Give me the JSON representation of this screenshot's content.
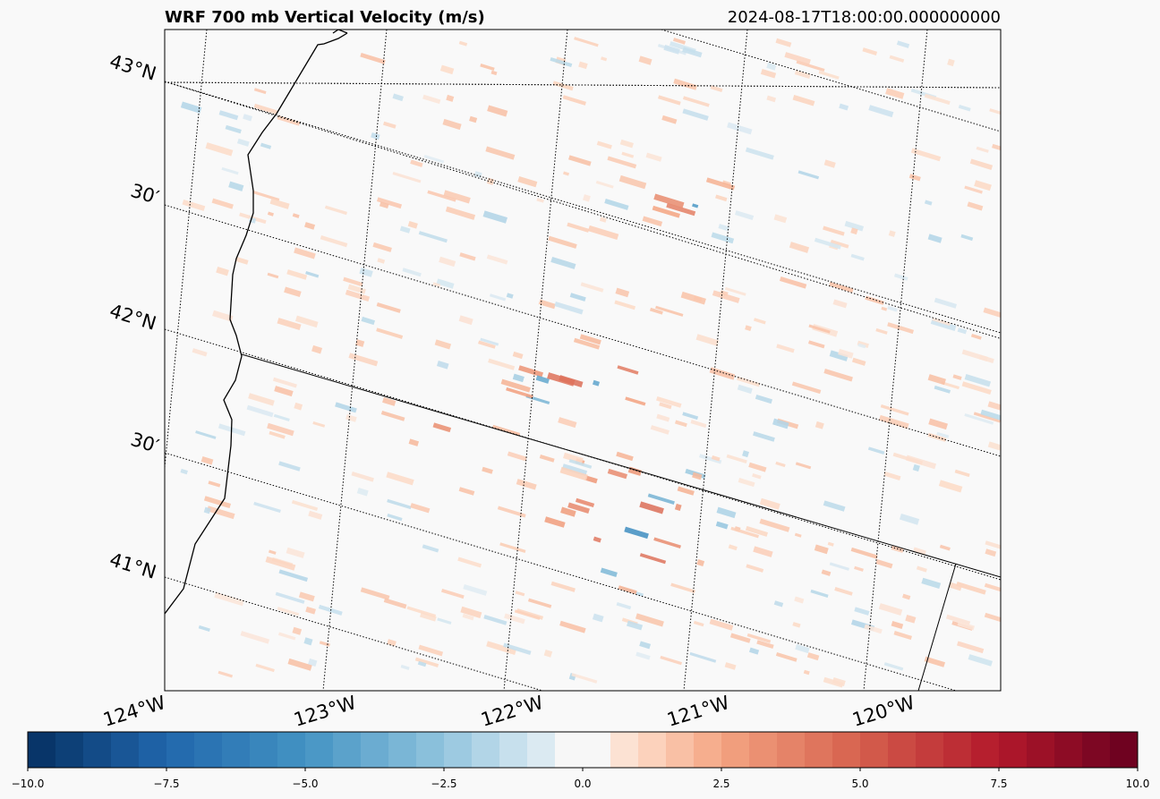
{
  "chart_data": {
    "type": "heatmap",
    "title": "WRF 700 mb Vertical Velocity (m/s)",
    "timestamp": "2024-08-17T18:00:00.000000000",
    "map": {
      "projection": "rotated Lambert-style map, north-west US (southern Oregon / northern California)",
      "lat_labels": [
        "43°N",
        "30′",
        "42°N",
        "30′",
        "41°N"
      ],
      "lon_labels": [
        "124°W",
        "123°W",
        "122°W",
        "121°W",
        "120°W"
      ],
      "gridlines": "dotted",
      "features": [
        "coastline",
        "state border"
      ]
    },
    "field": {
      "variable": "vertical velocity",
      "level": "700 mb",
      "units": "m/s",
      "typical_range": [
        -3,
        3
      ],
      "description": "mostly near-zero; scattered weak upward (red) and downward (blue) streaks, strongest cluster near 41.3°N 121.5°W"
    },
    "colorbar": {
      "range": [
        -10.0,
        10.0
      ],
      "ticks": [
        "−10.0",
        "−7.5",
        "−5.0",
        "−2.5",
        "0.0",
        "2.5",
        "5.0",
        "7.5",
        "10.0"
      ],
      "colormap": "RdBu_r",
      "levels": 40,
      "colors": {
        "min": "#053061",
        "low": "#2166ac",
        "mid_low": "#92c5de",
        "center": "#f7f7f7",
        "mid_high": "#f4a582",
        "high": "#b2182b",
        "max": "#67001f"
      }
    }
  }
}
